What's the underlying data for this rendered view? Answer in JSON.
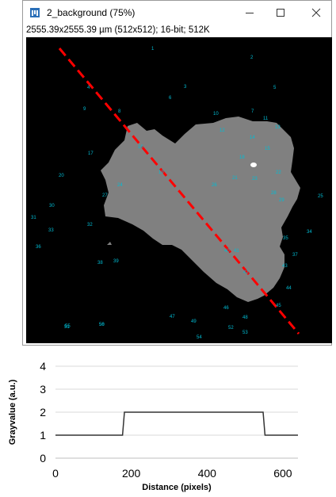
{
  "window": {
    "title": "2_background (75%)",
    "info": "2555.39x2555.39 µm (512x512); 16-bit; 512K",
    "buttons": [
      "minimize-icon",
      "maximize-icon",
      "close-icon"
    ]
  },
  "image": {
    "background_color": "#000000",
    "blob_color": "#808080",
    "line_color": "#ff0000",
    "label_color": "#00bcd4",
    "labels": [
      {
        "t": "1"
      },
      {
        "t": "2"
      },
      {
        "t": "3"
      },
      {
        "t": "4"
      },
      {
        "t": "5"
      },
      {
        "t": "6"
      },
      {
        "t": "7"
      },
      {
        "t": "8"
      },
      {
        "t": "9"
      },
      {
        "t": "10"
      },
      {
        "t": "11"
      },
      {
        "t": "12"
      },
      {
        "t": "13"
      },
      {
        "t": "14"
      },
      {
        "t": "15"
      },
      {
        "t": "16"
      },
      {
        "t": "17"
      },
      {
        "t": "18"
      },
      {
        "t": "19"
      },
      {
        "t": "20"
      },
      {
        "t": "21"
      },
      {
        "t": "22"
      },
      {
        "t": "23"
      },
      {
        "t": "24"
      },
      {
        "t": "25"
      },
      {
        "t": "26"
      },
      {
        "t": "27"
      },
      {
        "t": "28"
      },
      {
        "t": "29"
      },
      {
        "t": "30"
      },
      {
        "t": "31"
      },
      {
        "t": "32"
      },
      {
        "t": "33"
      },
      {
        "t": "34"
      },
      {
        "t": "35"
      },
      {
        "t": "36"
      },
      {
        "t": "37"
      },
      {
        "t": "38"
      },
      {
        "t": "39"
      },
      {
        "t": "40"
      },
      {
        "t": "41"
      },
      {
        "t": "42"
      },
      {
        "t": "43"
      },
      {
        "t": "44"
      },
      {
        "t": "45"
      },
      {
        "t": "46"
      },
      {
        "t": "47"
      },
      {
        "t": "48"
      },
      {
        "t": "49"
      },
      {
        "t": "50"
      },
      {
        "t": "51"
      },
      {
        "t": "52"
      },
      {
        "t": "53"
      },
      {
        "t": "54"
      },
      {
        "t": "55"
      },
      {
        "t": "56"
      }
    ]
  },
  "chart_data": {
    "type": "line",
    "xlabel": "Distance (pixels)",
    "ylabel": "Grayvalue (a.u.)",
    "xlim": [
      0,
      640
    ],
    "ylim": [
      0,
      4
    ],
    "xticks": [
      0,
      200,
      400,
      600
    ],
    "yticks": [
      0,
      1,
      2,
      3,
      4
    ],
    "grid": "horizontal",
    "line_color": "#333333",
    "x": [
      0,
      177,
      182,
      548,
      553,
      640
    ],
    "y": [
      1,
      1,
      2,
      2,
      1,
      1
    ]
  }
}
